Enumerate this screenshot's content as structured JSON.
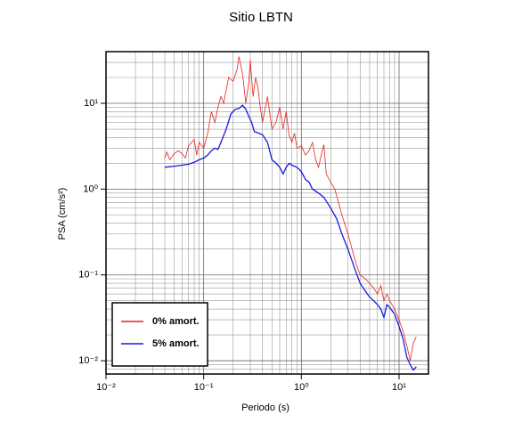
{
  "chart_data": {
    "type": "line",
    "title": "Sitio LBTN",
    "xlabel": "Periodo (s)",
    "ylabel": "PSA (cm/s²)",
    "xlog": true,
    "ylog": true,
    "grid": true,
    "legend": "lower left",
    "xlim": [
      0.01,
      20
    ],
    "ylim": [
      0.007,
      40
    ],
    "xticks": [
      {
        "value": 0.01,
        "label": "10⁻²"
      },
      {
        "value": 0.1,
        "label": "10⁻¹"
      },
      {
        "value": 1,
        "label": "10⁰"
      },
      {
        "value": 10,
        "label": "10¹"
      }
    ],
    "yticks": [
      {
        "value": 0.01,
        "label": "10⁻²"
      },
      {
        "value": 0.1,
        "label": "10⁻¹"
      },
      {
        "value": 1,
        "label": "10⁰"
      },
      {
        "value": 10,
        "label": "10¹"
      }
    ],
    "xminorticks": [
      0.02,
      0.03,
      0.04,
      0.05,
      0.06,
      0.07,
      0.08,
      0.09,
      0.2,
      0.3,
      0.4,
      0.5,
      0.6,
      0.7,
      0.8,
      0.9,
      2,
      3,
      4,
      5,
      6,
      7,
      8,
      9
    ],
    "yminorticks": [
      0.008,
      0.009,
      0.02,
      0.03,
      0.04,
      0.05,
      0.06,
      0.07,
      0.08,
      0.09,
      0.2,
      0.3,
      0.4,
      0.5,
      0.6,
      0.7,
      0.8,
      0.9,
      2,
      3,
      4,
      5,
      6,
      7,
      8,
      9,
      20,
      30
    ],
    "series": [
      {
        "name": "0% amort.",
        "color": "#e8211d",
        "x": [
          0.04,
          0.042,
          0.045,
          0.05,
          0.055,
          0.06,
          0.065,
          0.07,
          0.08,
          0.085,
          0.09,
          0.1,
          0.11,
          0.12,
          0.13,
          0.14,
          0.15,
          0.16,
          0.18,
          0.2,
          0.22,
          0.23,
          0.25,
          0.27,
          0.29,
          0.3,
          0.32,
          0.34,
          0.36,
          0.38,
          0.4,
          0.42,
          0.45,
          0.48,
          0.5,
          0.55,
          0.6,
          0.65,
          0.7,
          0.75,
          0.8,
          0.85,
          0.9,
          1.0,
          1.1,
          1.2,
          1.3,
          1.4,
          1.5,
          1.6,
          1.7,
          1.8,
          2.0,
          2.2,
          2.4,
          2.6,
          3.0,
          3.3,
          3.6,
          4.0,
          4.5,
          5.0,
          5.5,
          6.0,
          6.5,
          7.0,
          7.5,
          8.0,
          9.0,
          10,
          11,
          12,
          13,
          14,
          15
        ],
        "values": [
          2.3,
          2.7,
          2.2,
          2.6,
          2.8,
          2.6,
          2.3,
          3.2,
          3.8,
          2.5,
          3.5,
          3.0,
          4.5,
          8,
          6,
          9,
          12,
          10,
          20,
          18,
          25,
          35,
          22,
          10,
          18,
          32,
          12,
          20,
          15,
          9,
          6,
          8,
          12,
          7,
          5,
          6,
          9,
          5,
          8,
          4.2,
          3.5,
          4.5,
          3.0,
          3.2,
          2.5,
          2.8,
          3.5,
          2.2,
          1.8,
          2.5,
          3.3,
          1.5,
          1.2,
          1.0,
          0.7,
          0.5,
          0.3,
          0.2,
          0.14,
          0.1,
          0.09,
          0.08,
          0.07,
          0.06,
          0.075,
          0.05,
          0.06,
          0.05,
          0.04,
          0.03,
          0.022,
          0.015,
          0.01,
          0.016,
          0.019
        ]
      },
      {
        "name": "5% amort.",
        "color": "#1a1adf",
        "x": [
          0.04,
          0.05,
          0.06,
          0.07,
          0.08,
          0.09,
          0.1,
          0.11,
          0.12,
          0.13,
          0.14,
          0.15,
          0.17,
          0.19,
          0.21,
          0.23,
          0.25,
          0.27,
          0.29,
          0.31,
          0.33,
          0.36,
          0.4,
          0.45,
          0.5,
          0.55,
          0.6,
          0.65,
          0.7,
          0.75,
          0.8,
          0.9,
          1.0,
          1.1,
          1.2,
          1.3,
          1.5,
          1.7,
          2.0,
          2.3,
          2.6,
          3.0,
          3.5,
          4.0,
          4.5,
          5.0,
          5.5,
          6.0,
          6.5,
          7.0,
          7.5,
          8.0,
          9.0,
          10,
          11,
          12,
          13,
          14,
          15
        ],
        "values": [
          1.8,
          1.85,
          1.9,
          1.95,
          2.05,
          2.2,
          2.3,
          2.5,
          2.8,
          3.0,
          2.9,
          3.5,
          5,
          7.5,
          8.5,
          8.7,
          9.5,
          8.5,
          7,
          6,
          4.7,
          4.5,
          4.3,
          3.5,
          2.2,
          2.0,
          1.8,
          1.5,
          1.8,
          2.0,
          1.9,
          1.8,
          1.6,
          1.3,
          1.2,
          1.0,
          0.9,
          0.8,
          0.6,
          0.45,
          0.3,
          0.2,
          0.12,
          0.08,
          0.065,
          0.055,
          0.05,
          0.045,
          0.04,
          0.032,
          0.045,
          0.042,
          0.035,
          0.025,
          0.018,
          0.011,
          0.009,
          0.0078,
          0.0085
        ]
      }
    ]
  }
}
